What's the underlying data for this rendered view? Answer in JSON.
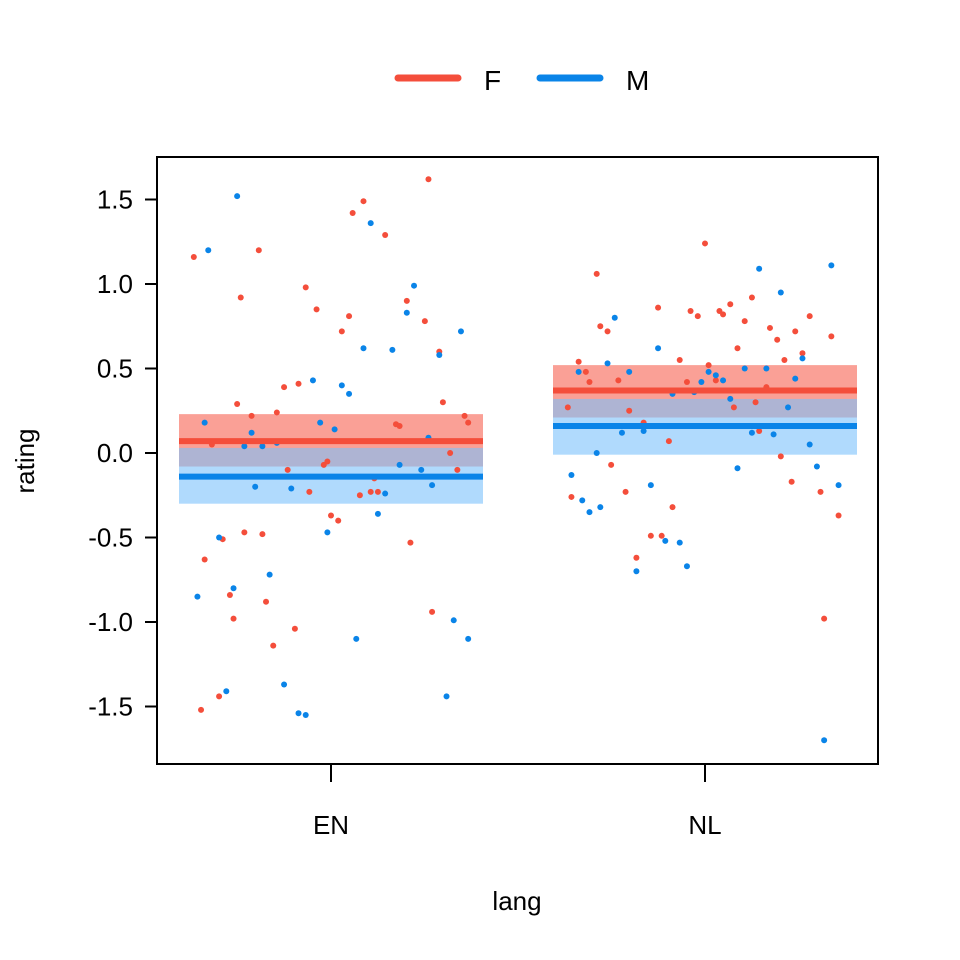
{
  "chart_data": {
    "type": "scatter",
    "xlabel": "lang",
    "ylabel": "rating",
    "categories": [
      "EN",
      "NL"
    ],
    "ylim": [
      -1.8,
      1.8
    ],
    "yticks": [
      "-1.5",
      "-1.0",
      "-0.5",
      "0.0",
      "0.5",
      "1.0",
      "1.5"
    ],
    "legend_position": "top-center",
    "grid": false,
    "series": [
      {
        "name": "F",
        "color": "#F44E3B",
        "band_color": "#F8776A",
        "estimates": [
          {
            "category": "EN",
            "mean": 0.07,
            "lower": -0.08,
            "upper": 0.23
          },
          {
            "category": "NL",
            "mean": 0.37,
            "lower": 0.21,
            "upper": 0.52
          }
        ],
        "points": [
          {
            "category": "EN",
            "x": -0.38,
            "y": 1.16
          },
          {
            "category": "EN",
            "x": -0.36,
            "y": -1.52
          },
          {
            "category": "EN",
            "x": -0.35,
            "y": -0.63
          },
          {
            "category": "EN",
            "x": -0.33,
            "y": 0.05
          },
          {
            "category": "EN",
            "x": -0.31,
            "y": -1.44
          },
          {
            "category": "EN",
            "x": -0.3,
            "y": -0.51
          },
          {
            "category": "EN",
            "x": -0.28,
            "y": -0.84
          },
          {
            "category": "EN",
            "x": -0.27,
            "y": -0.98
          },
          {
            "category": "EN",
            "x": -0.26,
            "y": 0.29
          },
          {
            "category": "EN",
            "x": -0.25,
            "y": 0.92
          },
          {
            "category": "EN",
            "x": -0.24,
            "y": -0.47
          },
          {
            "category": "EN",
            "x": -0.22,
            "y": 0.22
          },
          {
            "category": "EN",
            "x": -0.2,
            "y": 1.2
          },
          {
            "category": "EN",
            "x": -0.19,
            "y": -0.48
          },
          {
            "category": "EN",
            "x": -0.18,
            "y": -0.88
          },
          {
            "category": "EN",
            "x": -0.16,
            "y": -1.14
          },
          {
            "category": "EN",
            "x": -0.15,
            "y": 0.24
          },
          {
            "category": "EN",
            "x": -0.13,
            "y": 0.39
          },
          {
            "category": "EN",
            "x": -0.12,
            "y": -0.1
          },
          {
            "category": "EN",
            "x": -0.1,
            "y": -1.04
          },
          {
            "category": "EN",
            "x": -0.09,
            "y": 0.41
          },
          {
            "category": "EN",
            "x": -0.07,
            "y": 0.98
          },
          {
            "category": "EN",
            "x": -0.06,
            "y": -0.23
          },
          {
            "category": "EN",
            "x": -0.04,
            "y": 0.85
          },
          {
            "category": "EN",
            "x": -0.02,
            "y": -0.07
          },
          {
            "category": "EN",
            "x": -0.01,
            "y": -0.05
          },
          {
            "category": "EN",
            "x": 0.0,
            "y": -0.37
          },
          {
            "category": "EN",
            "x": 0.02,
            "y": -0.4
          },
          {
            "category": "EN",
            "x": 0.03,
            "y": 0.72
          },
          {
            "category": "EN",
            "x": 0.05,
            "y": 0.81
          },
          {
            "category": "EN",
            "x": 0.06,
            "y": 1.42
          },
          {
            "category": "EN",
            "x": 0.08,
            "y": -0.25
          },
          {
            "category": "EN",
            "x": 0.09,
            "y": 1.49
          },
          {
            "category": "EN",
            "x": 0.11,
            "y": -0.23
          },
          {
            "category": "EN",
            "x": 0.12,
            "y": -0.15
          },
          {
            "category": "EN",
            "x": 0.13,
            "y": -0.23
          },
          {
            "category": "EN",
            "x": 0.15,
            "y": 1.29
          },
          {
            "category": "EN",
            "x": 0.18,
            "y": 0.17
          },
          {
            "category": "EN",
            "x": 0.19,
            "y": 0.16
          },
          {
            "category": "EN",
            "x": 0.21,
            "y": 0.9
          },
          {
            "category": "EN",
            "x": 0.22,
            "y": -0.53
          },
          {
            "category": "EN",
            "x": 0.26,
            "y": 0.78
          },
          {
            "category": "EN",
            "x": 0.27,
            "y": 1.62
          },
          {
            "category": "EN",
            "x": 0.28,
            "y": -0.94
          },
          {
            "category": "EN",
            "x": 0.3,
            "y": 0.6
          },
          {
            "category": "EN",
            "x": 0.31,
            "y": 0.3
          },
          {
            "category": "EN",
            "x": 0.33,
            "y": 0.0
          },
          {
            "category": "EN",
            "x": 0.35,
            "y": -0.1
          },
          {
            "category": "EN",
            "x": 0.37,
            "y": 0.22
          },
          {
            "category": "EN",
            "x": 0.38,
            "y": 0.18
          },
          {
            "category": "NL",
            "x": -0.38,
            "y": 0.27
          },
          {
            "category": "NL",
            "x": -0.37,
            "y": -0.26
          },
          {
            "category": "NL",
            "x": -0.35,
            "y": 0.54
          },
          {
            "category": "NL",
            "x": -0.33,
            "y": 0.48
          },
          {
            "category": "NL",
            "x": -0.32,
            "y": 0.42
          },
          {
            "category": "NL",
            "x": -0.3,
            "y": 1.06
          },
          {
            "category": "NL",
            "x": -0.29,
            "y": 0.75
          },
          {
            "category": "NL",
            "x": -0.27,
            "y": 0.72
          },
          {
            "category": "NL",
            "x": -0.26,
            "y": -0.07
          },
          {
            "category": "NL",
            "x": -0.24,
            "y": 0.43
          },
          {
            "category": "NL",
            "x": -0.22,
            "y": -0.23
          },
          {
            "category": "NL",
            "x": -0.21,
            "y": 0.25
          },
          {
            "category": "NL",
            "x": -0.19,
            "y": -0.62
          },
          {
            "category": "NL",
            "x": -0.17,
            "y": 0.18
          },
          {
            "category": "NL",
            "x": -0.15,
            "y": -0.49
          },
          {
            "category": "NL",
            "x": -0.13,
            "y": 0.86
          },
          {
            "category": "NL",
            "x": -0.12,
            "y": -0.49
          },
          {
            "category": "NL",
            "x": -0.1,
            "y": 0.07
          },
          {
            "category": "NL",
            "x": -0.09,
            "y": -0.32
          },
          {
            "category": "NL",
            "x": -0.07,
            "y": 0.55
          },
          {
            "category": "NL",
            "x": -0.05,
            "y": 0.42
          },
          {
            "category": "NL",
            "x": -0.04,
            "y": 0.84
          },
          {
            "category": "NL",
            "x": -0.02,
            "y": 0.81
          },
          {
            "category": "NL",
            "x": 0.0,
            "y": 1.24
          },
          {
            "category": "NL",
            "x": 0.01,
            "y": 0.52
          },
          {
            "category": "NL",
            "x": 0.03,
            "y": 0.43
          },
          {
            "category": "NL",
            "x": 0.04,
            "y": 0.84
          },
          {
            "category": "NL",
            "x": 0.05,
            "y": 0.82
          },
          {
            "category": "NL",
            "x": 0.07,
            "y": 0.88
          },
          {
            "category": "NL",
            "x": 0.08,
            "y": 0.27
          },
          {
            "category": "NL",
            "x": 0.09,
            "y": 0.62
          },
          {
            "category": "NL",
            "x": 0.11,
            "y": 0.78
          },
          {
            "category": "NL",
            "x": 0.13,
            "y": 0.92
          },
          {
            "category": "NL",
            "x": 0.14,
            "y": 0.3
          },
          {
            "category": "NL",
            "x": 0.15,
            "y": 0.13
          },
          {
            "category": "NL",
            "x": 0.17,
            "y": 0.39
          },
          {
            "category": "NL",
            "x": 0.18,
            "y": 0.74
          },
          {
            "category": "NL",
            "x": 0.2,
            "y": 0.67
          },
          {
            "category": "NL",
            "x": 0.21,
            "y": -0.02
          },
          {
            "category": "NL",
            "x": 0.22,
            "y": 0.55
          },
          {
            "category": "NL",
            "x": 0.24,
            "y": -0.17
          },
          {
            "category": "NL",
            "x": 0.25,
            "y": 0.72
          },
          {
            "category": "NL",
            "x": 0.27,
            "y": 0.59
          },
          {
            "category": "NL",
            "x": 0.29,
            "y": 0.81
          },
          {
            "category": "NL",
            "x": 0.33,
            "y": -0.98
          },
          {
            "category": "NL",
            "x": 0.35,
            "y": 0.69
          },
          {
            "category": "NL",
            "x": 0.37,
            "y": -0.37
          },
          {
            "category": "NL",
            "x": 0.32,
            "y": -0.23
          }
        ]
      },
      {
        "name": "M",
        "color": "#0A84E8",
        "band_color": "#7CC2FC",
        "estimates": [
          {
            "category": "EN",
            "mean": -0.14,
            "lower": -0.3,
            "upper": 0.03
          },
          {
            "category": "NL",
            "mean": 0.16,
            "lower": -0.01,
            "upper": 0.32
          }
        ],
        "points": [
          {
            "category": "EN",
            "x": -0.37,
            "y": -0.85
          },
          {
            "category": "EN",
            "x": -0.35,
            "y": 0.18
          },
          {
            "category": "EN",
            "x": -0.34,
            "y": 1.2
          },
          {
            "category": "EN",
            "x": -0.31,
            "y": -0.5
          },
          {
            "category": "EN",
            "x": -0.29,
            "y": -1.41
          },
          {
            "category": "EN",
            "x": -0.27,
            "y": -0.8
          },
          {
            "category": "EN",
            "x": -0.26,
            "y": 1.52
          },
          {
            "category": "EN",
            "x": -0.24,
            "y": 0.04
          },
          {
            "category": "EN",
            "x": -0.22,
            "y": 0.12
          },
          {
            "category": "EN",
            "x": -0.21,
            "y": -0.2
          },
          {
            "category": "EN",
            "x": -0.19,
            "y": 0.04
          },
          {
            "category": "EN",
            "x": -0.17,
            "y": -0.72
          },
          {
            "category": "EN",
            "x": -0.15,
            "y": 0.06
          },
          {
            "category": "EN",
            "x": -0.13,
            "y": -1.37
          },
          {
            "category": "EN",
            "x": -0.11,
            "y": -0.21
          },
          {
            "category": "EN",
            "x": -0.09,
            "y": -1.54
          },
          {
            "category": "EN",
            "x": -0.07,
            "y": -1.55
          },
          {
            "category": "EN",
            "x": -0.05,
            "y": 0.43
          },
          {
            "category": "EN",
            "x": -0.03,
            "y": 0.18
          },
          {
            "category": "EN",
            "x": -0.01,
            "y": -0.47
          },
          {
            "category": "EN",
            "x": 0.01,
            "y": 0.14
          },
          {
            "category": "EN",
            "x": 0.03,
            "y": 0.4
          },
          {
            "category": "EN",
            "x": 0.05,
            "y": 0.35
          },
          {
            "category": "EN",
            "x": 0.07,
            "y": -1.1
          },
          {
            "category": "EN",
            "x": 0.09,
            "y": 0.62
          },
          {
            "category": "EN",
            "x": 0.11,
            "y": 1.36
          },
          {
            "category": "EN",
            "x": 0.13,
            "y": -0.36
          },
          {
            "category": "EN",
            "x": 0.15,
            "y": -0.24
          },
          {
            "category": "EN",
            "x": 0.17,
            "y": 0.61
          },
          {
            "category": "EN",
            "x": 0.19,
            "y": -0.07
          },
          {
            "category": "EN",
            "x": 0.21,
            "y": 0.83
          },
          {
            "category": "EN",
            "x": 0.23,
            "y": 0.99
          },
          {
            "category": "EN",
            "x": 0.25,
            "y": -0.1
          },
          {
            "category": "EN",
            "x": 0.27,
            "y": 0.09
          },
          {
            "category": "EN",
            "x": 0.28,
            "y": -0.19
          },
          {
            "category": "EN",
            "x": 0.3,
            "y": 0.58
          },
          {
            "category": "EN",
            "x": 0.32,
            "y": -1.44
          },
          {
            "category": "EN",
            "x": 0.34,
            "y": -0.99
          },
          {
            "category": "EN",
            "x": 0.36,
            "y": 0.72
          },
          {
            "category": "EN",
            "x": 0.38,
            "y": -1.1
          },
          {
            "category": "NL",
            "x": -0.37,
            "y": -0.13
          },
          {
            "category": "NL",
            "x": -0.35,
            "y": 0.48
          },
          {
            "category": "NL",
            "x": -0.34,
            "y": -0.28
          },
          {
            "category": "NL",
            "x": -0.32,
            "y": -0.35
          },
          {
            "category": "NL",
            "x": -0.3,
            "y": 0.0
          },
          {
            "category": "NL",
            "x": -0.29,
            "y": -0.32
          },
          {
            "category": "NL",
            "x": -0.27,
            "y": 0.53
          },
          {
            "category": "NL",
            "x": -0.25,
            "y": 0.8
          },
          {
            "category": "NL",
            "x": -0.23,
            "y": 0.12
          },
          {
            "category": "NL",
            "x": -0.21,
            "y": 0.48
          },
          {
            "category": "NL",
            "x": -0.19,
            "y": -0.7
          },
          {
            "category": "NL",
            "x": -0.17,
            "y": 0.13
          },
          {
            "category": "NL",
            "x": -0.15,
            "y": -0.19
          },
          {
            "category": "NL",
            "x": -0.13,
            "y": 0.62
          },
          {
            "category": "NL",
            "x": -0.11,
            "y": -0.52
          },
          {
            "category": "NL",
            "x": -0.09,
            "y": 0.35
          },
          {
            "category": "NL",
            "x": -0.07,
            "y": -0.53
          },
          {
            "category": "NL",
            "x": -0.05,
            "y": -0.67
          },
          {
            "category": "NL",
            "x": -0.03,
            "y": 0.36
          },
          {
            "category": "NL",
            "x": -0.01,
            "y": 0.42
          },
          {
            "category": "NL",
            "x": 0.01,
            "y": 0.48
          },
          {
            "category": "NL",
            "x": 0.03,
            "y": 0.46
          },
          {
            "category": "NL",
            "x": 0.05,
            "y": 0.43
          },
          {
            "category": "NL",
            "x": 0.07,
            "y": 0.32
          },
          {
            "category": "NL",
            "x": 0.09,
            "y": -0.09
          },
          {
            "category": "NL",
            "x": 0.11,
            "y": 0.5
          },
          {
            "category": "NL",
            "x": 0.13,
            "y": 0.12
          },
          {
            "category": "NL",
            "x": 0.15,
            "y": 1.09
          },
          {
            "category": "NL",
            "x": 0.17,
            "y": 0.5
          },
          {
            "category": "NL",
            "x": 0.19,
            "y": 0.11
          },
          {
            "category": "NL",
            "x": 0.21,
            "y": 0.95
          },
          {
            "category": "NL",
            "x": 0.23,
            "y": 0.27
          },
          {
            "category": "NL",
            "x": 0.25,
            "y": 0.44
          },
          {
            "category": "NL",
            "x": 0.27,
            "y": 0.56
          },
          {
            "category": "NL",
            "x": 0.29,
            "y": 0.05
          },
          {
            "category": "NL",
            "x": 0.31,
            "y": -0.08
          },
          {
            "category": "NL",
            "x": 0.33,
            "y": -1.7
          },
          {
            "category": "NL",
            "x": 0.35,
            "y": 1.11
          },
          {
            "category": "NL",
            "x": 0.37,
            "y": -0.19
          }
        ]
      }
    ]
  }
}
